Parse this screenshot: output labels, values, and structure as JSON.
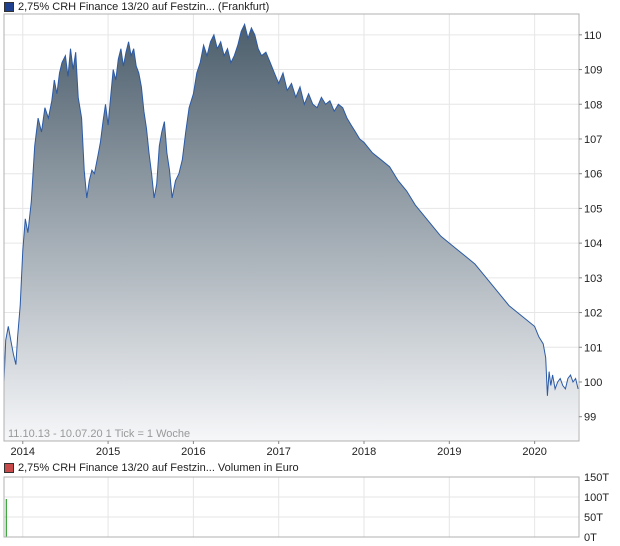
{
  "colors": {
    "price_line": "#2b5aa6",
    "price_swatch": "#1f3f8f",
    "area_top": "#4c5e6c",
    "area_bottom": "#f6f7f9",
    "volume_bar": "#2ca02c",
    "volume_swatch": "#c94a4a",
    "grid": "#e6e6e6",
    "frame": "#b0b0b0"
  },
  "chart_data": [
    {
      "type": "area",
      "legend": "2,75% CRH Finance 13/20 auf Festzin... (Frankfurt)",
      "note": "11.10.13 - 10.07.20   1 Tick = 1 Woche",
      "x_tick_labels": [
        "2014",
        "2015",
        "2016",
        "2017",
        "2018",
        "2019",
        "2020"
      ],
      "y_tick_labels": [
        "99",
        "100",
        "101",
        "102",
        "103",
        "104",
        "105",
        "106",
        "107",
        "108",
        "109",
        "110"
      ],
      "xlim": [
        2013.78,
        2020.52
      ],
      "ylim": [
        98.3,
        110.6
      ],
      "grid": true,
      "y_axis_side": "right",
      "series": [
        {
          "x": [
            2013.78,
            2013.8,
            2013.83,
            2013.86,
            2013.89,
            2013.92,
            2013.94,
            2013.97,
            2014.0,
            2014.03,
            2014.06,
            2014.1,
            2014.14,
            2014.18,
            2014.22,
            2014.26,
            2014.3,
            2014.34,
            2014.37,
            2014.4,
            2014.43,
            2014.46,
            2014.5,
            2014.53,
            2014.56,
            2014.59,
            2014.62,
            2014.65,
            2014.69,
            2014.72,
            2014.75,
            2014.78,
            2014.81,
            2014.84,
            2014.88,
            2014.91,
            2014.94,
            2014.97,
            2015.0,
            2015.03,
            2015.06,
            2015.09,
            2015.12,
            2015.15,
            2015.18,
            2015.21,
            2015.24,
            2015.27,
            2015.3,
            2015.33,
            2015.36,
            2015.39,
            2015.42,
            2015.45,
            2015.48,
            2015.51,
            2015.54,
            2015.57,
            2015.6,
            2015.63,
            2015.66,
            2015.69,
            2015.72,
            2015.75,
            2015.79,
            2015.83,
            2015.87,
            2015.91,
            2015.95,
            2016.0,
            2016.04,
            2016.08,
            2016.12,
            2016.16,
            2016.2,
            2016.24,
            2016.28,
            2016.32,
            2016.36,
            2016.4,
            2016.44,
            2016.48,
            2016.52,
            2016.56,
            2016.6,
            2016.64,
            2016.68,
            2016.72,
            2016.76,
            2016.8,
            2016.85,
            2016.9,
            2016.95,
            2017.0,
            2017.05,
            2017.1,
            2017.15,
            2017.2,
            2017.25,
            2017.3,
            2017.35,
            2017.4,
            2017.45,
            2017.5,
            2017.55,
            2017.6,
            2017.65,
            2017.7,
            2017.75,
            2017.8,
            2017.85,
            2017.9,
            2017.95,
            2018.0,
            2018.1,
            2018.2,
            2018.3,
            2018.4,
            2018.5,
            2018.6,
            2018.7,
            2018.8,
            2018.9,
            2019.0,
            2019.1,
            2019.2,
            2019.3,
            2019.4,
            2019.5,
            2019.6,
            2019.7,
            2019.8,
            2019.9,
            2020.0,
            2020.05,
            2020.1,
            2020.13,
            2020.15,
            2020.17,
            2020.19,
            2020.21,
            2020.24,
            2020.27,
            2020.3,
            2020.33,
            2020.36,
            2020.39,
            2020.42,
            2020.45,
            2020.48,
            2020.51
          ],
          "values": [
            100.0,
            101.2,
            101.6,
            101.2,
            100.8,
            100.5,
            101.3,
            102.2,
            103.8,
            104.7,
            104.3,
            105.2,
            106.8,
            107.6,
            107.2,
            107.9,
            107.6,
            108.1,
            108.7,
            108.3,
            108.9,
            109.2,
            109.4,
            108.8,
            109.6,
            109.0,
            109.5,
            108.2,
            107.6,
            106.1,
            105.3,
            105.8,
            106.1,
            106.0,
            106.5,
            106.9,
            107.5,
            108.0,
            107.4,
            108.2,
            109.0,
            108.7,
            109.3,
            109.6,
            109.1,
            109.5,
            109.8,
            109.4,
            109.6,
            109.1,
            108.9,
            108.5,
            107.8,
            107.3,
            106.6,
            106.0,
            105.3,
            105.7,
            106.8,
            107.2,
            107.5,
            106.6,
            106.1,
            105.3,
            105.8,
            106.0,
            106.4,
            107.2,
            107.9,
            108.3,
            108.9,
            109.2,
            109.7,
            109.4,
            109.8,
            110.0,
            109.6,
            109.8,
            109.4,
            109.6,
            109.2,
            109.4,
            109.7,
            110.1,
            110.3,
            109.9,
            110.2,
            110.0,
            109.6,
            109.4,
            109.5,
            109.2,
            108.9,
            108.6,
            108.9,
            108.4,
            108.6,
            108.2,
            108.5,
            108.0,
            108.3,
            108.0,
            107.9,
            108.2,
            108.0,
            108.1,
            107.8,
            108.0,
            107.9,
            107.6,
            107.4,
            107.2,
            107.0,
            106.9,
            106.6,
            106.4,
            106.2,
            105.8,
            105.5,
            105.1,
            104.8,
            104.5,
            104.2,
            104.0,
            103.8,
            103.6,
            103.4,
            103.1,
            102.8,
            102.5,
            102.2,
            102.0,
            101.8,
            101.6,
            101.3,
            101.1,
            100.7,
            99.6,
            100.3,
            99.9,
            100.2,
            99.8,
            100.0,
            100.1,
            99.9,
            99.8,
            100.1,
            100.2,
            100.0,
            100.1,
            99.8
          ]
        }
      ]
    },
    {
      "type": "bar",
      "legend": "2,75% CRH Finance 13/20 auf Festzin... Volumen in Euro",
      "y_tick_labels": [
        "0T",
        "50T",
        "100T",
        "150T"
      ],
      "ylim": [
        0,
        150
      ],
      "grid": true,
      "y_axis_side": "right",
      "series": [
        {
          "x": [
            2013.8
          ],
          "values": [
            95
          ]
        }
      ]
    }
  ]
}
